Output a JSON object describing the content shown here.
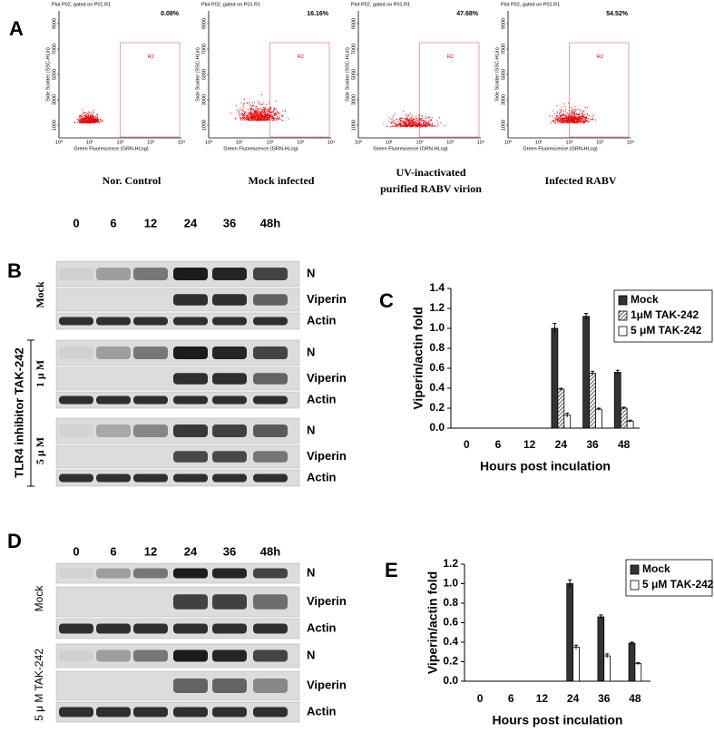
{
  "panel_labels": {
    "a": "A",
    "b": "B",
    "c": "C",
    "d": "D",
    "e": "E"
  },
  "panel_a": {
    "plot_title": "Plot P02, gated on P01.R1",
    "gate_label": "R2",
    "y_axis_label": "Side Scatter (SSC-HLin)",
    "x_axis_label": "Green Fluorescence (GRN-HLog)",
    "yticks": [
      1000,
      3000,
      5000,
      7000,
      9000
    ],
    "xticks": [
      "10⁰",
      "10¹",
      "10²",
      "10³",
      "10⁴"
    ],
    "plots": [
      {
        "percent": "0.08%",
        "caption": [
          "Nor. Control"
        ]
      },
      {
        "percent": "16.16%",
        "caption": [
          "Mock  infected"
        ]
      },
      {
        "percent": "47.68%",
        "caption": [
          "UV-inactivated",
          "purified RABV virion"
        ]
      },
      {
        "percent": "54.52%",
        "caption": [
          "Infected RABV"
        ]
      }
    ]
  },
  "panel_b": {
    "lanes": [
      "0",
      "6",
      "12",
      "24",
      "36",
      "48h"
    ],
    "row_labels": [
      "N",
      "Viperin",
      "Actin"
    ],
    "groups": [
      "Mock",
      "1 μ M",
      "5 μ M"
    ],
    "treatment": "TLR4 inhibitor TAK-242"
  },
  "panel_d": {
    "lanes": [
      "0",
      "6",
      "12",
      "24",
      "36",
      "48h"
    ],
    "row_labels": [
      "N",
      "Viperin",
      "Actin"
    ],
    "groups": [
      "Mock",
      "5 μ M TAK-242"
    ]
  },
  "chart_data": [
    {
      "type": "bar",
      "y_label": "Viperin/actin fold",
      "x_label": "Hours post inculation",
      "categories": [
        "0",
        "6",
        "12",
        "24",
        "36",
        "48"
      ],
      "series": [
        {
          "name": "Mock",
          "color": "#333333",
          "values": [
            0,
            0,
            0,
            1.0,
            1.12,
            0.56
          ],
          "errors": [
            null,
            null,
            null,
            0.05,
            0.03,
            0.02
          ]
        },
        {
          "name": "1μM TAK-242",
          "color": "#999999",
          "hatch": true,
          "values": [
            0,
            0,
            0,
            0.39,
            0.55,
            0.2
          ],
          "errors": [
            null,
            null,
            null,
            0.01,
            0.02,
            0.01
          ]
        },
        {
          "name": "5 μM TAK-242",
          "color": "#ffffff",
          "values": [
            0,
            0,
            0,
            0.13,
            0.19,
            0.07
          ],
          "errors": [
            null,
            null,
            null,
            0.02,
            0.01,
            0.01
          ]
        }
      ],
      "ylim": [
        0,
        1.4
      ],
      "yticks": [
        {
          "value": 0,
          "label": "0.0"
        },
        {
          "value": 0.2,
          "label": "0.2"
        },
        {
          "value": 0.4,
          "label": "0.4"
        },
        {
          "value": 0.6,
          "label": "0.6"
        },
        {
          "value": 0.8,
          "label": "0.8"
        },
        {
          "value": 1.0,
          "label": "1.0"
        },
        {
          "value": 1.2,
          "label": "1.2"
        },
        {
          "value": 1.4,
          "label": "1.4"
        }
      ],
      "legend": "upper right"
    },
    {
      "type": "bar",
      "y_label": "Viperin/actin fold",
      "x_label": "Hours post inculation",
      "categories": [
        "0",
        "6",
        "12",
        "24",
        "36",
        "48"
      ],
      "series": [
        {
          "name": "Mock",
          "color": "#333333",
          "values": [
            0,
            0,
            0,
            1.0,
            0.66,
            0.39
          ],
          "errors": [
            null,
            null,
            null,
            0.04,
            0.02,
            0.01
          ]
        },
        {
          "name": "5 μM TAK-242",
          "color": "#ffffff",
          "values": [
            0,
            0,
            0,
            0.35,
            0.26,
            0.18
          ],
          "errors": [
            null,
            null,
            null,
            0.02,
            0.02,
            0.01
          ]
        }
      ],
      "ylim": [
        0,
        1.2
      ],
      "yticks": [
        {
          "value": 0,
          "label": "0.0"
        },
        {
          "value": 0.2,
          "label": "0.2"
        },
        {
          "value": 0.4,
          "label": "0.4"
        },
        {
          "value": 0.6,
          "label": "0.6"
        },
        {
          "value": 0.8,
          "label": "0.8"
        },
        {
          "value": 1.0,
          "label": "1.0"
        },
        {
          "value": 1.2,
          "label": "1.2"
        }
      ],
      "legend": "upper right"
    }
  ]
}
